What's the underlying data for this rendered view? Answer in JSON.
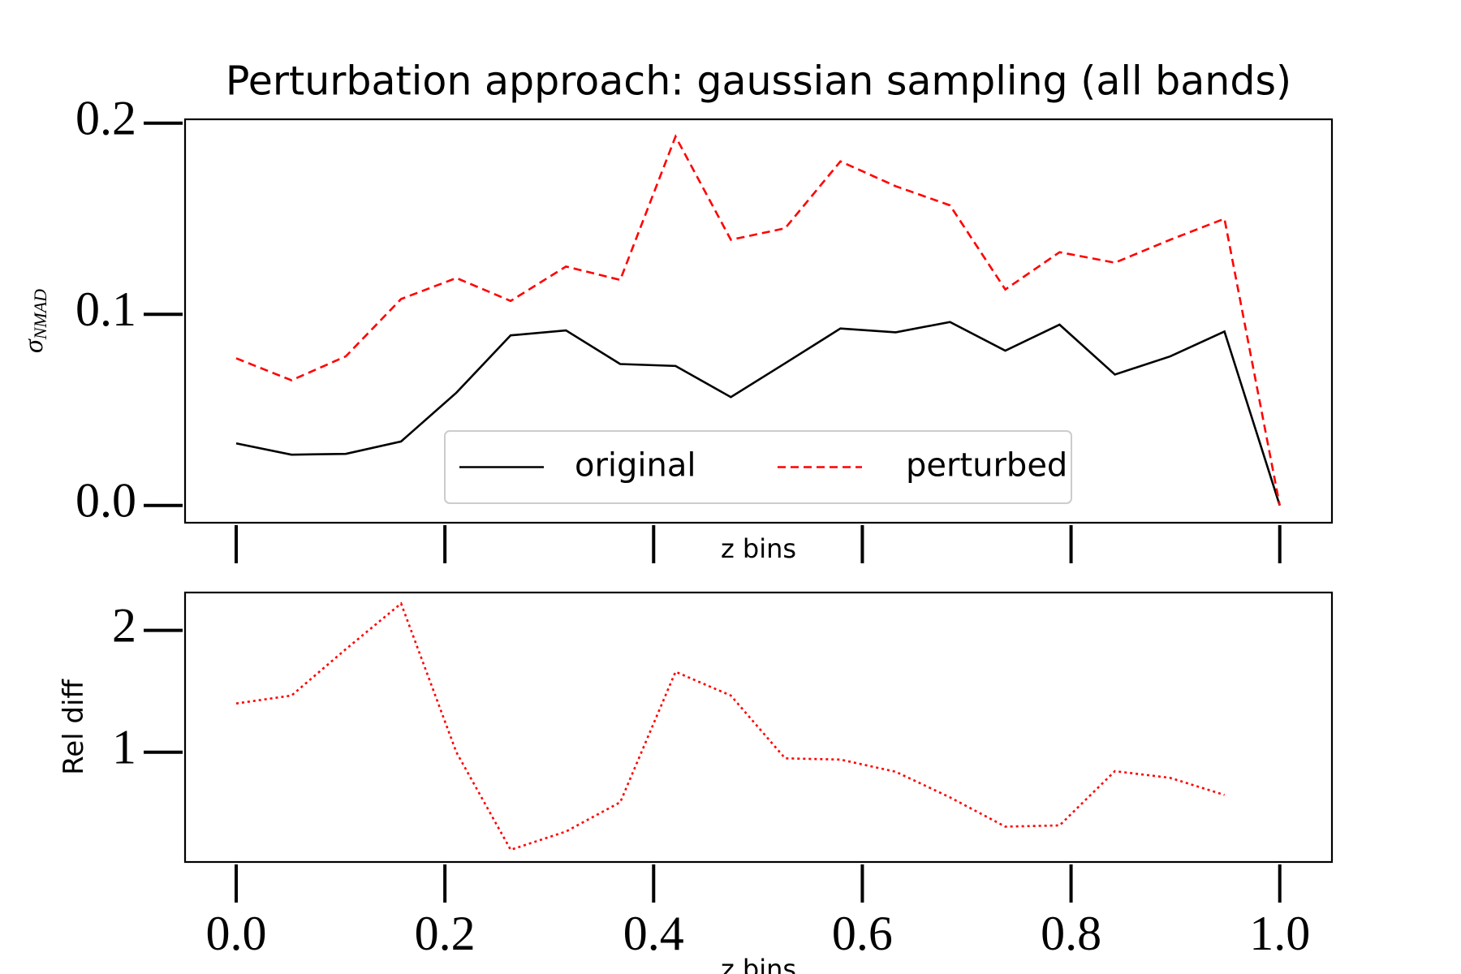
{
  "chart_data": [
    {
      "type": "line",
      "title": "Perturbation approach: gaussian sampling (all bands)",
      "xlabel": "z bins",
      "ylabel": "σ",
      "ylabel_subscript": "NMAD",
      "x": [
        0,
        0.053,
        0.105,
        0.158,
        0.211,
        0.263,
        0.316,
        0.368,
        0.421,
        0.474,
        0.526,
        0.579,
        0.632,
        0.684,
        0.737,
        0.789,
        0.842,
        0.895,
        0.947,
        1.0
      ],
      "series": [
        {
          "name": "original",
          "color": "#000000",
          "style": "solid",
          "values": [
            0.0325,
            0.0266,
            0.027,
            0.0335,
            0.059,
            0.089,
            0.0916,
            0.074,
            0.073,
            0.0567,
            0.0744,
            0.0926,
            0.0906,
            0.096,
            0.081,
            0.0946,
            0.0685,
            0.078,
            0.091,
            0
          ]
        },
        {
          "name": "perturbed",
          "color": "#ff0000",
          "style": "dashed",
          "values": [
            0.077,
            0.0655,
            0.078,
            0.108,
            0.119,
            0.107,
            0.125,
            0.118,
            0.193,
            0.139,
            0.145,
            0.18,
            0.167,
            0.157,
            0.113,
            0.1325,
            0.127,
            0.139,
            0.15,
            0
          ]
        }
      ],
      "xlim": [
        -0.049,
        1.05
      ],
      "xticks": [
        {
          "value": 0,
          "label": "0.0"
        },
        0.2,
        0.4,
        0.6,
        0.8,
        {
          "value": 1,
          "label": "1.0"
        }
      ],
      "x_tick_labels": false,
      "ylim": [
        -0.009,
        0.202
      ],
      "yticks": [
        {
          "value": 0,
          "label": "0.0"
        },
        0.1,
        0.2
      ],
      "legend": "lower center"
    },
    {
      "type": "line",
      "xlabel": "z bins",
      "ylabel": "Rel diff",
      "x": [
        0,
        0.053,
        0.105,
        0.158,
        0.211,
        0.263,
        0.316,
        0.368,
        0.421,
        0.474,
        0.526,
        0.579,
        0.632,
        0.684,
        0.737,
        0.789,
        0.842,
        0.895,
        0.947,
        1.0
      ],
      "series": [
        {
          "color": "#ff0000",
          "style": "dotted",
          "values": [
            1.4,
            1.465,
            1.845,
            2.22,
            1.0,
            0.2,
            0.35,
            0.59,
            1.66,
            1.465,
            0.95,
            0.94,
            0.84,
            0.63,
            0.39,
            0.4,
            0.845,
            0.79,
            0.65,
            null
          ]
        }
      ],
      "xlim": [
        -0.049,
        1.05
      ],
      "xticks": [
        {
          "value": 0,
          "label": "0.0"
        },
        0.2,
        0.4,
        0.6,
        0.8,
        {
          "value": 1,
          "label": "1.0"
        }
      ],
      "x_tick_labels": true,
      "ylim": [
        0.1,
        2.31
      ],
      "yticks": [
        1,
        2
      ]
    }
  ]
}
